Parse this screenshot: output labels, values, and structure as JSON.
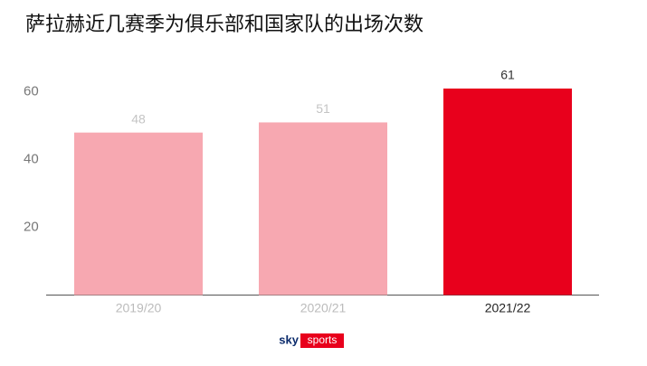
{
  "chart_data": {
    "type": "bar",
    "title": "萨拉赫近几赛季为俱乐部和国家队的出场次数",
    "categories": [
      "2019/20",
      "2020/21",
      "2021/22"
    ],
    "values": [
      48,
      51,
      61
    ],
    "colors": [
      "#f7a8b1",
      "#f7a8b1",
      "#e8001c"
    ],
    "label_colors": [
      "#c4c4c4",
      "#c4c4c4",
      "#333333"
    ],
    "ylim": [
      0,
      65
    ],
    "yticks": [
      20,
      40,
      60
    ],
    "grid": false
  },
  "footer": {
    "logo_left": "sky",
    "logo_right": "sports"
  }
}
